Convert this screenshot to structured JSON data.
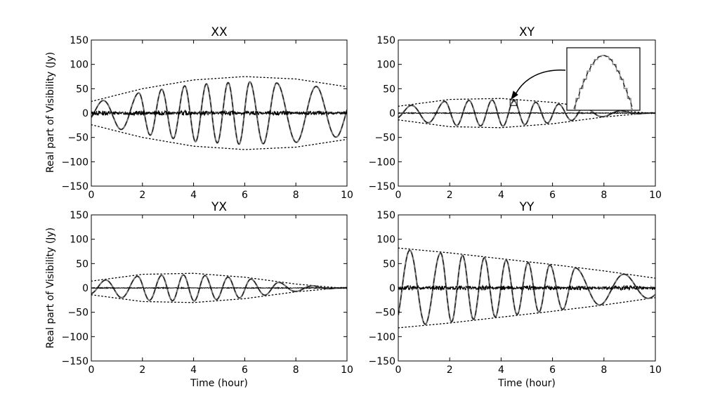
{
  "figure": {
    "y_axis_label": "Real part of Visibility (Jy)",
    "x_axis_label": "Time (hour)"
  },
  "chart_data": [
    {
      "type": "line",
      "title": "XX",
      "xlabel": "",
      "ylabel": "Real part of Visibility (Jy)",
      "xlim": [
        0,
        10
      ],
      "ylim": [
        -150,
        150
      ],
      "xticks": [
        "0",
        "2",
        "4",
        "6",
        "8",
        "10"
      ],
      "yticks": [
        "150",
        "100",
        "50",
        "0",
        "−50",
        "−100",
        "−150"
      ],
      "envelope": {
        "x": [
          0,
          2,
          4,
          6,
          8,
          10
        ],
        "y": [
          24,
          50,
          68,
          75,
          70,
          54
        ]
      },
      "oscillation": {
        "peaks_x": [
          0.45,
          1.85,
          2.75,
          3.65,
          4.5,
          5.35,
          6.2,
          7.25,
          8.8
        ],
        "amplitude_ratio": 0.86
      },
      "residual_amplitude": 5,
      "grid": false
    },
    {
      "type": "line",
      "title": "XY",
      "xlabel": "",
      "ylabel": "",
      "xlim": [
        0,
        10
      ],
      "ylim": [
        -150,
        150
      ],
      "xticks": [
        "0",
        "2",
        "4",
        "6",
        "8",
        "10"
      ],
      "yticks": [
        "150",
        "100",
        "50",
        "0",
        "−50",
        "−100",
        "−150"
      ],
      "envelope": {
        "x": [
          0,
          2,
          4,
          6,
          8,
          9.5,
          10
        ],
        "y": [
          14,
          28,
          30,
          22,
          8,
          1,
          0
        ]
      },
      "oscillation": {
        "peaks_x": [
          0.5,
          1.8,
          2.75,
          3.65,
          4.5,
          5.35,
          6.25,
          7.25,
          8.7
        ],
        "amplitude_ratio": 0.9
      },
      "residual_amplitude": 1,
      "inset": {
        "description_none": ""
      },
      "grid": false
    },
    {
      "type": "line",
      "title": "YX",
      "xlabel": "Time (hour)",
      "ylabel": "Real part of Visibility (Jy)",
      "xlim": [
        0,
        10
      ],
      "ylim": [
        -150,
        150
      ],
      "xticks": [
        "0",
        "2",
        "4",
        "6",
        "8",
        "10"
      ],
      "yticks": [
        "150",
        "100",
        "50",
        "0",
        "−50",
        "−100",
        "−150"
      ],
      "envelope": {
        "x": [
          0,
          2,
          4,
          6,
          8,
          9.5,
          10
        ],
        "y": [
          14,
          28,
          30,
          22,
          8,
          1,
          0
        ]
      },
      "oscillation": {
        "peaks_x": [
          0.55,
          1.8,
          2.75,
          3.6,
          4.45,
          5.35,
          6.25,
          7.35,
          8.7
        ],
        "amplitude_ratio": 0.9
      },
      "residual_amplitude": 1,
      "grid": false
    },
    {
      "type": "line",
      "title": "YY",
      "xlabel": "Time (hour)",
      "ylabel": "",
      "xlim": [
        0,
        10
      ],
      "ylim": [
        -150,
        150
      ],
      "xticks": [
        "0",
        "2",
        "4",
        "6",
        "8",
        "10"
      ],
      "yticks": [
        "150",
        "100",
        "50",
        "0",
        "−50",
        "−100",
        "−150"
      ],
      "envelope": {
        "x": [
          0,
          2,
          4,
          6,
          8,
          10
        ],
        "y": [
          82,
          72,
          60,
          48,
          35,
          20
        ]
      },
      "oscillation": {
        "peaks_x": [
          0.45,
          1.65,
          2.5,
          3.35,
          4.2,
          5.05,
          5.9,
          6.9,
          8.8
        ],
        "amplitude_ratio": 0.97
      },
      "residual_amplitude": 5,
      "grid": false
    }
  ]
}
